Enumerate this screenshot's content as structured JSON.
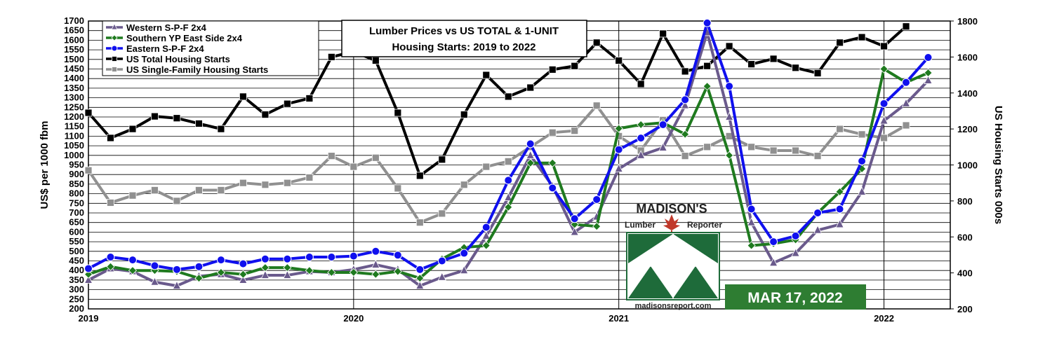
{
  "colors": {
    "western": "#6a5a8c",
    "southern": "#1f7a1f",
    "eastern": "#1010ee",
    "total_starts": "#000000",
    "single_family": "#909090",
    "logo_green": "#1e6b3a",
    "date_badge": "#2e7d32"
  },
  "chart_data": {
    "type": "line",
    "title_line1": "Lumber Prices vs US TOTAL & 1-UNIT",
    "title_line2": "Housing Starts: 2019 to 2022",
    "ylabel_left": "US$ per 1000 fbm",
    "ylabel_right": "US Housing Starts 000s",
    "ylim_left": [
      200,
      1700
    ],
    "ylim_right": [
      200,
      1800
    ],
    "yticks_left": [
      "200",
      "250",
      "300",
      "350",
      "400",
      "450",
      "500",
      "550",
      "600",
      "650",
      "700",
      "750",
      "800",
      "850",
      "900",
      "950",
      "1000",
      "1050",
      "1100",
      "1150",
      "1200",
      "1250",
      "1300",
      "1350",
      "1400",
      "1450",
      "1500",
      "1550",
      "1600",
      "1650",
      "1700"
    ],
    "yticks_right": [
      "200",
      "400",
      "600",
      "800",
      "1000",
      "1200",
      "1400",
      "1600",
      "1800"
    ],
    "x_tick_labels": [
      "2019",
      "2020",
      "2021",
      "2022"
    ],
    "x_start": "2019-01",
    "x_end": "2022-04",
    "legend_position": "top-left",
    "grid": true,
    "series": [
      {
        "name": "Western S-P-F 2x4",
        "axis": "left",
        "color": "#6a5a8c",
        "marker": "triangle",
        "x": [
          "2019-01",
          "2019-02",
          "2019-03",
          "2019-04",
          "2019-05",
          "2019-06",
          "2019-07",
          "2019-08",
          "2019-09",
          "2019-10",
          "2019-11",
          "2019-12",
          "2020-01",
          "2020-02",
          "2020-03",
          "2020-04",
          "2020-05",
          "2020-06",
          "2020-07",
          "2020-08",
          "2020-09",
          "2020-10",
          "2020-11",
          "2020-12",
          "2021-01",
          "2021-02",
          "2021-03",
          "2021-04",
          "2021-05",
          "2021-06",
          "2021-07",
          "2021-08",
          "2021-09",
          "2021-10",
          "2021-11",
          "2021-12",
          "2022-01",
          "2022-02",
          "2022-03"
        ],
        "values": [
          350,
          410,
          395,
          340,
          320,
          370,
          380,
          350,
          375,
          375,
          395,
          390,
          405,
          430,
          405,
          320,
          365,
          400,
          580,
          780,
          1000,
          840,
          600,
          680,
          930,
          1000,
          1040,
          1260,
          1640,
          1200,
          650,
          440,
          490,
          610,
          640,
          810,
          1180,
          1270,
          1390
        ]
      },
      {
        "name": "Southern YP East Side 2x4",
        "axis": "left",
        "color": "#1f7a1f",
        "marker": "diamond",
        "x": [
          "2019-01",
          "2019-02",
          "2019-03",
          "2019-04",
          "2019-05",
          "2019-06",
          "2019-07",
          "2019-08",
          "2019-09",
          "2019-10",
          "2019-11",
          "2019-12",
          "2020-01",
          "2020-02",
          "2020-03",
          "2020-04",
          "2020-05",
          "2020-06",
          "2020-07",
          "2020-08",
          "2020-09",
          "2020-10",
          "2020-11",
          "2020-12",
          "2021-01",
          "2021-02",
          "2021-03",
          "2021-04",
          "2021-05",
          "2021-06",
          "2021-07",
          "2021-08",
          "2021-09",
          "2021-10",
          "2021-11",
          "2021-12",
          "2022-01",
          "2022-02",
          "2022-03"
        ],
        "values": [
          380,
          420,
          400,
          400,
          395,
          360,
          390,
          380,
          415,
          415,
          400,
          390,
          390,
          380,
          395,
          360,
          460,
          520,
          530,
          730,
          960,
          960,
          640,
          630,
          1140,
          1160,
          1170,
          1110,
          1360,
          1000,
          530,
          540,
          560,
          700,
          810,
          930,
          1450,
          1380,
          1430
        ]
      },
      {
        "name": "Eastern S-P-F 2x4",
        "axis": "left",
        "color": "#1010ee",
        "marker": "circle",
        "x": [
          "2019-01",
          "2019-02",
          "2019-03",
          "2019-04",
          "2019-05",
          "2019-06",
          "2019-07",
          "2019-08",
          "2019-09",
          "2019-10",
          "2019-11",
          "2019-12",
          "2020-01",
          "2020-02",
          "2020-03",
          "2020-04",
          "2020-05",
          "2020-06",
          "2020-07",
          "2020-08",
          "2020-09",
          "2020-10",
          "2020-11",
          "2020-12",
          "2021-01",
          "2021-02",
          "2021-03",
          "2021-04",
          "2021-05",
          "2021-06",
          "2021-07",
          "2021-08",
          "2021-09",
          "2021-10",
          "2021-11",
          "2021-12",
          "2022-01",
          "2022-02",
          "2022-03"
        ],
        "values": [
          410,
          470,
          455,
          425,
          405,
          420,
          455,
          435,
          460,
          460,
          470,
          470,
          475,
          500,
          480,
          405,
          450,
          490,
          625,
          870,
          1060,
          830,
          670,
          770,
          1030,
          1090,
          1160,
          1290,
          1690,
          1360,
          720,
          550,
          580,
          700,
          720,
          970,
          1270,
          1380,
          1510
        ]
      },
      {
        "name": "US Total Housing Starts",
        "axis": "right",
        "color": "#000000",
        "marker": "square",
        "x": [
          "2019-01",
          "2019-02",
          "2019-03",
          "2019-04",
          "2019-05",
          "2019-06",
          "2019-07",
          "2019-08",
          "2019-09",
          "2019-10",
          "2019-11",
          "2019-12",
          "2020-01",
          "2020-02",
          "2020-03",
          "2020-04",
          "2020-05",
          "2020-06",
          "2020-07",
          "2020-08",
          "2020-09",
          "2020-10",
          "2020-11",
          "2020-12",
          "2021-01",
          "2021-02",
          "2021-03",
          "2021-04",
          "2021-05",
          "2021-06",
          "2021-07",
          "2021-08",
          "2021-09",
          "2021-10",
          "2021-11",
          "2021-12",
          "2022-01",
          "2022-02"
        ],
        "values": [
          1290,
          1150,
          1200,
          1270,
          1260,
          1230,
          1200,
          1380,
          1280,
          1340,
          1370,
          1600,
          1630,
          1580,
          1290,
          940,
          1030,
          1280,
          1500,
          1380,
          1430,
          1530,
          1550,
          1680,
          1580,
          1450,
          1730,
          1520,
          1550,
          1660,
          1560,
          1590,
          1540,
          1510,
          1680,
          1710,
          1660,
          1770
        ]
      },
      {
        "name": "US Single-Family Housing Starts",
        "axis": "right",
        "color": "#909090",
        "marker": "square",
        "x": [
          "2019-01",
          "2019-02",
          "2019-03",
          "2019-04",
          "2019-05",
          "2019-06",
          "2019-07",
          "2019-08",
          "2019-09",
          "2019-10",
          "2019-11",
          "2019-12",
          "2020-01",
          "2020-02",
          "2020-03",
          "2020-04",
          "2020-05",
          "2020-06",
          "2020-07",
          "2020-08",
          "2020-09",
          "2020-10",
          "2020-11",
          "2020-12",
          "2021-01",
          "2021-02",
          "2021-03",
          "2021-04",
          "2021-05",
          "2021-06",
          "2021-07",
          "2021-08",
          "2021-09",
          "2021-10",
          "2021-11",
          "2021-12",
          "2022-01",
          "2022-02"
        ],
        "values": [
          970,
          790,
          830,
          860,
          800,
          860,
          860,
          900,
          890,
          900,
          930,
          1050,
          990,
          1040,
          870,
          680,
          730,
          890,
          990,
          1020,
          1100,
          1180,
          1190,
          1330,
          1160,
          1080,
          1250,
          1050,
          1100,
          1160,
          1100,
          1080,
          1080,
          1050,
          1200,
          1170,
          1150,
          1220
        ]
      }
    ]
  },
  "logo": {
    "brand": "MADISON'S",
    "sub_left": "Lumber",
    "sub_right": "Reporter",
    "url": "madisonsreport.com"
  },
  "date_badge": "MAR 17, 2022"
}
